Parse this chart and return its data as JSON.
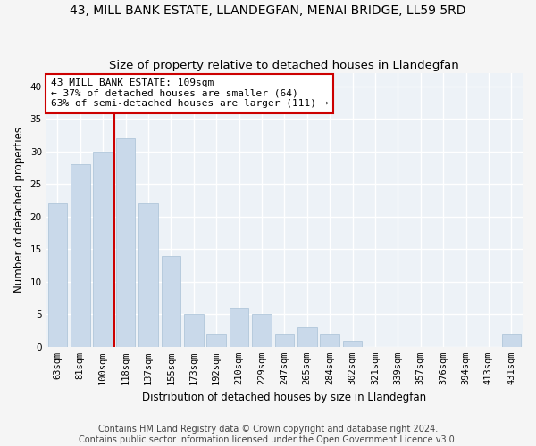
{
  "title": "43, MILL BANK ESTATE, LLANDEGFAN, MENAI BRIDGE, LL59 5RD",
  "subtitle": "Size of property relative to detached houses in Llandegfan",
  "xlabel": "Distribution of detached houses by size in Llandegfan",
  "ylabel": "Number of detached properties",
  "categories": [
    "63sqm",
    "81sqm",
    "100sqm",
    "118sqm",
    "137sqm",
    "155sqm",
    "173sqm",
    "192sqm",
    "210sqm",
    "229sqm",
    "247sqm",
    "265sqm",
    "284sqm",
    "302sqm",
    "321sqm",
    "339sqm",
    "357sqm",
    "376sqm",
    "394sqm",
    "413sqm",
    "431sqm"
  ],
  "values": [
    22,
    28,
    30,
    32,
    22,
    14,
    5,
    2,
    6,
    5,
    2,
    3,
    2,
    1,
    0,
    0,
    0,
    0,
    0,
    0,
    2
  ],
  "bar_color": "#c9d9ea",
  "bar_edgecolor": "#a8c0d6",
  "subject_index": 2,
  "subject_label": "43 MILL BANK ESTATE: 109sqm",
  "annotation_line1": "← 37% of detached houses are smaller (64)",
  "annotation_line2": "63% of semi-detached houses are larger (111) →",
  "redline_color": "#cc0000",
  "annotation_box_edgecolor": "#cc0000",
  "annotation_box_facecolor": "#ffffff",
  "ylim": [
    0,
    42
  ],
  "yticks": [
    0,
    5,
    10,
    15,
    20,
    25,
    30,
    35,
    40
  ],
  "background_color": "#edf2f7",
  "grid_color": "#ffffff",
  "footer_line1": "Contains HM Land Registry data © Crown copyright and database right 2024.",
  "footer_line2": "Contains public sector information licensed under the Open Government Licence v3.0.",
  "title_fontsize": 10,
  "subtitle_fontsize": 9.5,
  "axis_label_fontsize": 8.5,
  "tick_fontsize": 7.5,
  "annotation_fontsize": 8,
  "footer_fontsize": 7
}
